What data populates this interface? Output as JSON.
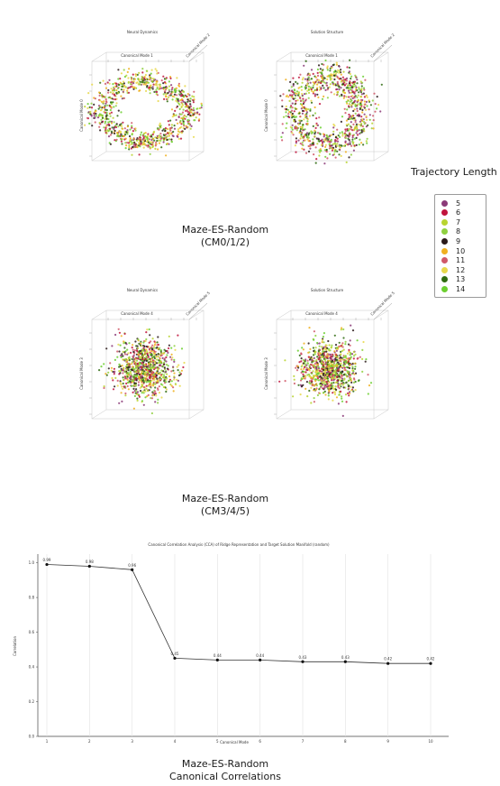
{
  "colors": {
    "traj": [
      "#8b3a78",
      "#c0143c",
      "#b8d430",
      "#8fd040",
      "#2a1a1a",
      "#f0b020",
      "#d05868",
      "#e8d84a",
      "#2f6b10",
      "#6ccf30"
    ]
  },
  "legend": {
    "title": "Trajectory Length",
    "items": [
      "5",
      "6",
      "7",
      "8",
      "9",
      "10",
      "11",
      "12",
      "13",
      "14"
    ]
  },
  "panels_top": {
    "left_title": "Neural Dynamics",
    "right_title": "Solution Structure",
    "left_axis": "Canonical Mode 1",
    "right_axis": "Canonical Mode 1",
    "left_z": "Canonical Mode 2",
    "right_z": "Canonical Mode 2",
    "left_y": "Canonical Mode 0",
    "right_y": "Canonical Mode 0",
    "caption_line1": "Maze-ES-Random",
    "caption_line2": "(CM0/1/2)"
  },
  "panels_mid": {
    "left_title": "Neural Dynamics",
    "right_title": "Solution Structure",
    "left_axis": "Canonical Mode 4",
    "right_axis": "Canonical Mode 4",
    "left_z": "Canonical Mode 5",
    "right_z": "Canonical Mode 5",
    "left_y": "Canonical Mode 3",
    "right_y": "Canonical Mode 3",
    "caption_line1": "Maze-ES-Random",
    "caption_line2": "(CM3/4/5)"
  },
  "bottom_caption": {
    "line1": "Maze-ES-Random",
    "line2": "Canonical Correlations"
  },
  "chart_data": {
    "type": "line",
    "title": "Canonical Correlation Analysis (CCA) of Ridge Representation and Target Solution Manifold (random)",
    "xlabel": "Canonical Mode",
    "ylabel": "Correlation",
    "x": [
      1,
      2,
      3,
      4,
      5,
      6,
      7,
      8,
      9,
      10
    ],
    "values": [
      0.99,
      0.98,
      0.96,
      0.45,
      0.44,
      0.44,
      0.43,
      0.43,
      0.42,
      0.42
    ],
    "value_labels": [
      "0.99",
      "0.98",
      "0.96",
      "0.45",
      "0.44",
      "0.44",
      "0.43",
      "0.43",
      "0.42",
      "0.42"
    ],
    "y_ticks": [
      "0.0",
      "0.2",
      "0.4",
      "0.6",
      "0.8",
      "1.0"
    ],
    "x_ticks": [
      "1",
      "2",
      "3",
      "4",
      "5",
      "6",
      "7",
      "8",
      "9",
      "10"
    ],
    "ylim": [
      0,
      1.05
    ],
    "grid": "vertical",
    "line_color": "#333333"
  }
}
